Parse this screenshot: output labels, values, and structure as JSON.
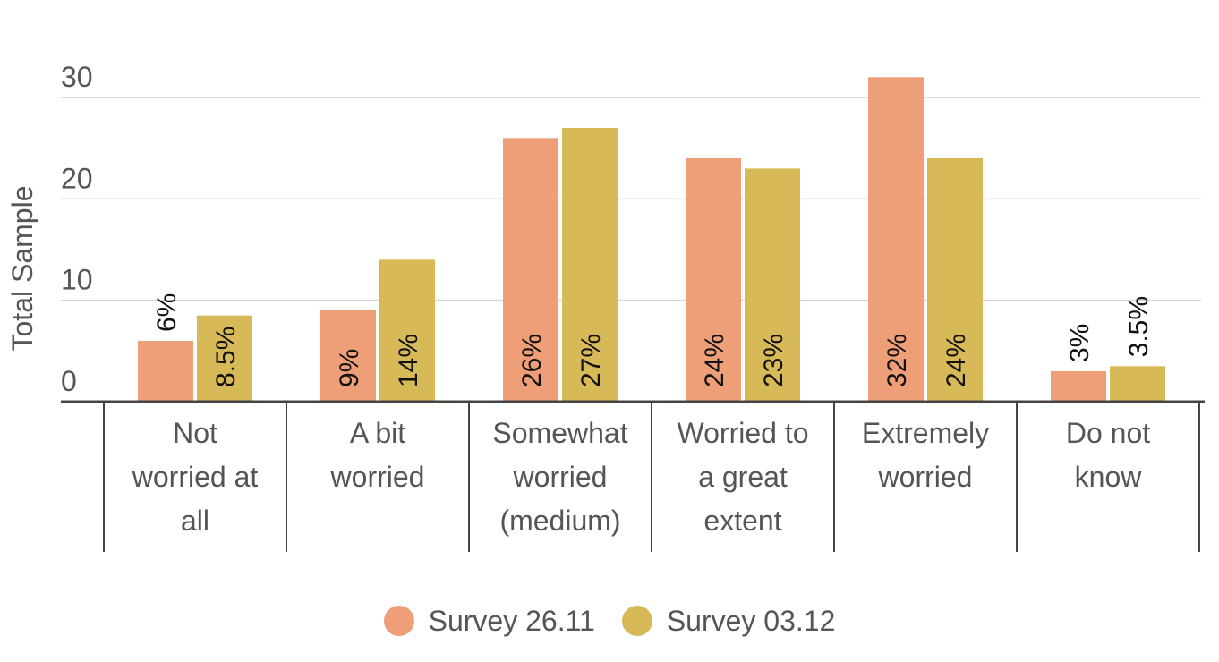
{
  "chart_data": {
    "type": "bar",
    "ylabel": "Total  Sample",
    "xlabel": "",
    "ylim": [
      0,
      30
    ],
    "yticks": [
      0,
      10,
      20,
      30
    ],
    "grid": true,
    "legend_position": "bottom",
    "categories": [
      [
        "Not",
        "worried at",
        "all"
      ],
      [
        "A bit",
        "worried"
      ],
      [
        "Somewhat",
        "worried",
        "(medium)"
      ],
      [
        "Worried to",
        "a great",
        "extent"
      ],
      [
        "Extremely",
        "worried"
      ],
      [
        "Do not",
        "know"
      ]
    ],
    "series": [
      {
        "name": "Survey 26.11",
        "color": "#EE9F78",
        "values": [
          6,
          9,
          26,
          24,
          32,
          3
        ],
        "labels": [
          "6%",
          "9%",
          "26%",
          "24%",
          "32%",
          "3%"
        ]
      },
      {
        "name": "Survey 03.12",
        "color": "#D8B957",
        "values": [
          8.5,
          14,
          27,
          23,
          24,
          3.5
        ],
        "labels": [
          "8.5%",
          "14%",
          "27%",
          "23%",
          "24%",
          "3.5%"
        ]
      }
    ]
  }
}
